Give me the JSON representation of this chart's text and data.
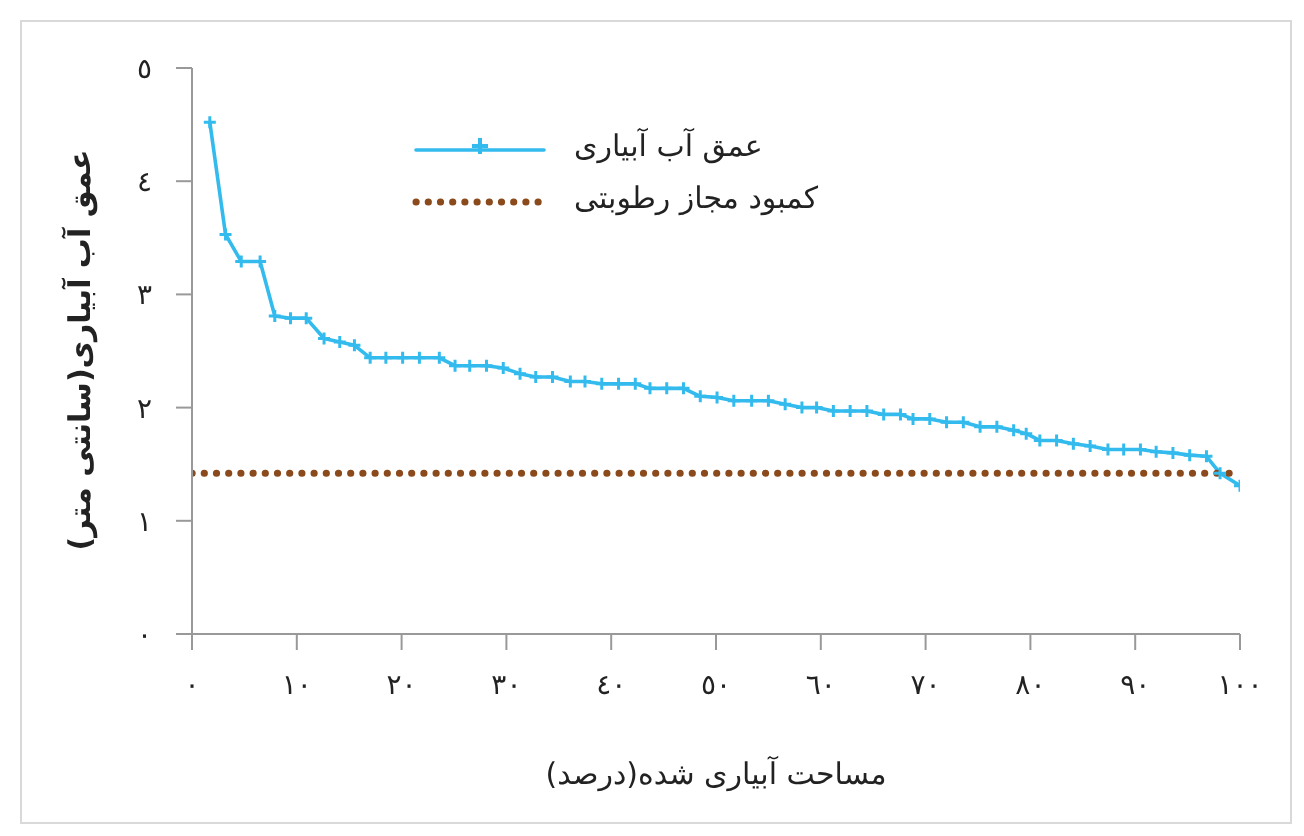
{
  "chart_data": {
    "type": "line",
    "xlabel": "مساحت آبیاری شده(درصد)",
    "ylabel": "عمق آب آبیاری(سانتی متر)",
    "xlim": [
      0,
      100
    ],
    "ylim": [
      0,
      5
    ],
    "xticks": [
      {
        "value": 0,
        "label": "٠"
      },
      {
        "value": 10,
        "label": "١٠"
      },
      {
        "value": 20,
        "label": "٢٠"
      },
      {
        "value": 30,
        "label": "٣٠"
      },
      {
        "value": 40,
        "label": "٤٠"
      },
      {
        "value": 50,
        "label": "٥٠"
      },
      {
        "value": 60,
        "label": "٦٠"
      },
      {
        "value": 70,
        "label": "٧٠"
      },
      {
        "value": 80,
        "label": "٨٠"
      },
      {
        "value": 90,
        "label": "٩٠"
      },
      {
        "value": 100,
        "label": "١٠٠"
      }
    ],
    "yticks": [
      {
        "value": 0,
        "label": "٠"
      },
      {
        "value": 1,
        "label": "١"
      },
      {
        "value": 2,
        "label": "٢"
      },
      {
        "value": 3,
        "label": "٣"
      },
      {
        "value": 4,
        "label": "٤"
      },
      {
        "value": 5,
        "label": "٥"
      }
    ],
    "legend": "top",
    "grid": false,
    "marker": "cross",
    "line_style": "solid",
    "series": [
      {
        "name": "عمق آب آبیاری",
        "color": "#33bbee",
        "x": [
          1.7,
          3.2,
          4.7,
          6.5,
          7.9,
          9.4,
          10.9,
          12.6,
          14.1,
          15.5,
          17.0,
          18.5,
          20.1,
          21.7,
          23.6,
          25.1,
          26.5,
          28.1,
          29.7,
          31.3,
          32.8,
          34.4,
          36.1,
          37.5,
          39.1,
          40.7,
          42.3,
          43.7,
          45.3,
          46.9,
          48.5,
          50.1,
          51.7,
          53.4,
          55.0,
          56.6,
          58.2,
          59.6,
          61.2,
          62.8,
          64.4,
          66.0,
          67.6,
          68.8,
          70.4,
          72.0,
          73.6,
          75.2,
          76.8,
          78.4,
          79.6,
          80.9,
          82.5,
          84.1,
          85.7,
          87.4,
          88.9,
          90.5,
          92.0,
          93.6,
          95.2,
          96.8,
          98.1,
          100
        ],
        "values": [
          4.52,
          3.53,
          3.29,
          3.29,
          2.81,
          2.79,
          2.79,
          2.61,
          2.58,
          2.55,
          2.44,
          2.44,
          2.44,
          2.44,
          2.44,
          2.37,
          2.37,
          2.37,
          2.35,
          2.3,
          2.27,
          2.27,
          2.23,
          2.23,
          2.21,
          2.21,
          2.21,
          2.17,
          2.17,
          2.17,
          2.1,
          2.09,
          2.06,
          2.06,
          2.06,
          2.03,
          2.0,
          2.0,
          1.97,
          1.97,
          1.97,
          1.94,
          1.94,
          1.9,
          1.9,
          1.87,
          1.87,
          1.83,
          1.83,
          1.8,
          1.77,
          1.71,
          1.71,
          1.68,
          1.66,
          1.63,
          1.63,
          1.63,
          1.61,
          1.6,
          1.58,
          1.57,
          1.42,
          1.31
        ]
      },
      {
        "name": "کمبود مجاز رطوبتی",
        "color": "#8b4a1c",
        "line_style": "dotted",
        "marker": "none",
        "x": [
          0,
          100
        ],
        "values": [
          1.42,
          1.42
        ]
      }
    ]
  }
}
